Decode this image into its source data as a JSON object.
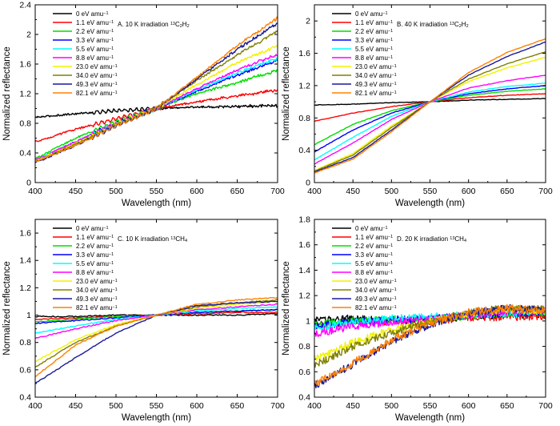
{
  "colors": [
    "#000000",
    "#ff0000",
    "#00dd00",
    "#0000ff",
    "#00ffff",
    "#ff00ff",
    "#f2f200",
    "#808000",
    "#1a1a99",
    "#ff8000"
  ],
  "series_names": [
    "0 eV amu⁻¹",
    "1.1 eV amu⁻¹",
    "2.2 eV amu⁻¹",
    "3.3 eV amu⁻¹",
    "5.5 eV amu⁻¹",
    "8.8 eV amu⁻¹",
    "23.0 eV amu⁻¹",
    "34.0 eV amu⁻¹",
    "49.3 eV amu⁻¹",
    "82.1 eV amu⁻¹"
  ],
  "chart_data": [
    {
      "type": "line",
      "panel": "A",
      "title": "A. 10 K irradiation ¹³C₂H₂",
      "xlabel": "Wavelength (nm)",
      "ylabel": "Normalized reflectance",
      "xlim": [
        400,
        700
      ],
      "ylim": [
        0.0,
        2.4
      ],
      "xticks": [
        400,
        450,
        500,
        550,
        600,
        650,
        700
      ],
      "yticks": [
        0.0,
        0.4,
        0.8,
        1.2,
        1.6,
        2.0,
        2.4
      ],
      "x": [
        400,
        450,
        500,
        550,
        600,
        650,
        700
      ],
      "series": [
        {
          "name": "0 eV amu⁻¹",
          "values": [
            0.88,
            0.93,
            0.97,
            1.0,
            1.02,
            1.03,
            1.04
          ]
        },
        {
          "name": "1.1 eV amu⁻¹",
          "values": [
            0.55,
            0.72,
            0.86,
            1.0,
            1.09,
            1.17,
            1.25
          ]
        },
        {
          "name": "2.2 eV amu⁻¹",
          "values": [
            0.32,
            0.6,
            0.82,
            1.0,
            1.2,
            1.35,
            1.52
          ]
        },
        {
          "name": "3.3 eV amu⁻¹",
          "values": [
            0.3,
            0.55,
            0.8,
            1.0,
            1.23,
            1.45,
            1.65
          ]
        },
        {
          "name": "5.5 eV amu⁻¹",
          "values": [
            0.3,
            0.55,
            0.8,
            1.0,
            1.25,
            1.48,
            1.68
          ]
        },
        {
          "name": "8.8 eV amu⁻¹",
          "values": [
            0.3,
            0.55,
            0.8,
            1.0,
            1.27,
            1.52,
            1.73
          ]
        },
        {
          "name": "23.0 eV amu⁻¹",
          "values": [
            0.29,
            0.53,
            0.79,
            1.0,
            1.32,
            1.62,
            1.85
          ]
        },
        {
          "name": "34.0 eV amu⁻¹",
          "values": [
            0.28,
            0.52,
            0.78,
            1.0,
            1.38,
            1.72,
            2.05
          ]
        },
        {
          "name": "49.3 eV amu⁻¹",
          "values": [
            0.27,
            0.5,
            0.77,
            1.0,
            1.4,
            1.8,
            2.15
          ]
        },
        {
          "name": "82.1 eV amu⁻¹",
          "values": [
            0.28,
            0.5,
            0.77,
            1.0,
            1.42,
            1.85,
            2.22
          ]
        }
      ]
    },
    {
      "type": "line",
      "panel": "B",
      "title": "B. 40 K irradiation ¹³C₂H₂",
      "xlabel": "Wavelength (nm)",
      "ylabel": "Normalized reflectance",
      "xlim": [
        400,
        700
      ],
      "ylim": [
        0.0,
        2.2
      ],
      "xticks": [
        400,
        450,
        500,
        550,
        600,
        650,
        700
      ],
      "yticks": [
        0.0,
        0.4,
        0.8,
        1.2,
        1.6,
        2.0
      ],
      "x": [
        400,
        450,
        500,
        550,
        600,
        650,
        700
      ],
      "series": [
        {
          "name": "0 eV amu⁻¹",
          "values": [
            0.96,
            0.97,
            0.99,
            1.0,
            1.02,
            1.03,
            1.04
          ]
        },
        {
          "name": "1.1 eV amu⁻¹",
          "values": [
            0.76,
            0.86,
            0.94,
            1.0,
            1.05,
            1.08,
            1.1
          ]
        },
        {
          "name": "2.2 eV amu⁻¹",
          "values": [
            0.47,
            0.72,
            0.89,
            1.0,
            1.08,
            1.13,
            1.16
          ]
        },
        {
          "name": "3.3 eV amu⁻¹",
          "values": [
            0.38,
            0.65,
            0.86,
            1.0,
            1.1,
            1.16,
            1.2
          ]
        },
        {
          "name": "5.5 eV amu⁻¹",
          "values": [
            0.28,
            0.56,
            0.82,
            1.0,
            1.12,
            1.19,
            1.23
          ]
        },
        {
          "name": "8.8 eV amu⁻¹",
          "values": [
            0.23,
            0.49,
            0.78,
            1.0,
            1.17,
            1.26,
            1.33
          ]
        },
        {
          "name": "23.0 eV amu⁻¹",
          "values": [
            0.15,
            0.36,
            0.7,
            1.0,
            1.25,
            1.42,
            1.55
          ]
        },
        {
          "name": "34.0 eV amu⁻¹",
          "values": [
            0.14,
            0.34,
            0.68,
            1.0,
            1.28,
            1.47,
            1.62
          ]
        },
        {
          "name": "49.3 eV amu⁻¹",
          "values": [
            0.13,
            0.31,
            0.65,
            1.0,
            1.33,
            1.56,
            1.74
          ]
        },
        {
          "name": "82.1 eV amu⁻¹",
          "values": [
            0.12,
            0.29,
            0.63,
            1.0,
            1.36,
            1.61,
            1.78
          ]
        }
      ]
    },
    {
      "type": "line",
      "panel": "C",
      "title": "C. 10 K irradiation ¹³CH₄",
      "xlabel": "Wavelength (nm)",
      "ylabel": "Normalized reflectance",
      "xlim": [
        400,
        700
      ],
      "ylim": [
        0.4,
        1.7
      ],
      "xticks": [
        400,
        450,
        500,
        550,
        600,
        650,
        700
      ],
      "yticks": [
        0.4,
        0.6,
        0.8,
        1.0,
        1.2,
        1.4,
        1.6
      ],
      "x": [
        400,
        450,
        500,
        550,
        600,
        650,
        700
      ],
      "series": [
        {
          "name": "0 eV amu⁻¹",
          "values": [
            0.99,
            0.99,
            1.0,
            1.0,
            1.0,
            1.0,
            1.01
          ]
        },
        {
          "name": "1.1 eV amu⁻¹",
          "values": [
            0.97,
            0.98,
            0.99,
            1.0,
            1.01,
            1.02,
            1.02
          ]
        },
        {
          "name": "2.2 eV amu⁻¹",
          "values": [
            0.95,
            0.97,
            0.99,
            1.0,
            1.02,
            1.03,
            1.04
          ]
        },
        {
          "name": "3.3 eV amu⁻¹",
          "values": [
            0.94,
            0.96,
            0.98,
            1.0,
            1.02,
            1.03,
            1.04
          ]
        },
        {
          "name": "5.5 eV amu⁻¹",
          "values": [
            0.87,
            0.92,
            0.97,
            1.0,
            1.03,
            1.05,
            1.06
          ]
        },
        {
          "name": "8.8 eV amu⁻¹",
          "values": [
            0.83,
            0.9,
            0.96,
            1.0,
            1.04,
            1.06,
            1.08
          ]
        },
        {
          "name": "23.0 eV amu⁻¹",
          "values": [
            0.66,
            0.82,
            0.93,
            1.0,
            1.05,
            1.08,
            1.1
          ]
        },
        {
          "name": "34.0 eV amu⁻¹",
          "values": [
            0.62,
            0.8,
            0.92,
            1.0,
            1.06,
            1.09,
            1.11
          ]
        },
        {
          "name": "49.3 eV amu⁻¹",
          "values": [
            0.5,
            0.69,
            0.87,
            1.0,
            1.07,
            1.09,
            1.1
          ]
        },
        {
          "name": "82.1 eV amu⁻¹",
          "values": [
            0.55,
            0.78,
            0.92,
            1.0,
            1.08,
            1.11,
            1.13
          ]
        }
      ]
    },
    {
      "type": "line",
      "panel": "D",
      "title": "D. 20 K irradiation ¹³CH₄",
      "xlabel": "Wavelength (nm)",
      "ylabel": "Normalized reflectance",
      "xlim": [
        400,
        700
      ],
      "ylim": [
        0.4,
        1.8
      ],
      "xticks": [
        400,
        450,
        500,
        550,
        600,
        650,
        700
      ],
      "yticks": [
        0.4,
        0.6,
        0.8,
        1.0,
        1.2,
        1.4,
        1.6,
        1.8
      ],
      "x": [
        400,
        450,
        500,
        550,
        600,
        650,
        700
      ],
      "series": [
        {
          "name": "0 eV amu⁻¹",
          "values": [
            1.0,
            1.02,
            1.01,
            1.0,
            1.04,
            1.05,
            1.05
          ]
        },
        {
          "name": "1.1 eV amu⁻¹",
          "values": [
            0.97,
            0.99,
            1.0,
            1.0,
            1.03,
            1.03,
            1.04
          ]
        },
        {
          "name": "2.2 eV amu⁻¹",
          "values": [
            0.98,
            1.0,
            1.01,
            1.01,
            1.04,
            1.06,
            1.05
          ]
        },
        {
          "name": "3.3 eV amu⁻¹",
          "values": [
            0.96,
            0.99,
            1.01,
            1.02,
            1.05,
            1.06,
            1.07
          ]
        },
        {
          "name": "5.5 eV amu⁻¹",
          "values": [
            0.95,
            0.99,
            1.02,
            1.03,
            1.05,
            1.06,
            1.07
          ]
        },
        {
          "name": "8.8 eV amu⁻¹",
          "values": [
            0.9,
            0.96,
            0.99,
            1.01,
            1.05,
            1.07,
            1.08
          ]
        },
        {
          "name": "23.0 eV amu⁻¹",
          "values": [
            0.7,
            0.83,
            0.93,
            1.0,
            1.06,
            1.09,
            1.08
          ]
        },
        {
          "name": "34.0 eV amu⁻¹",
          "values": [
            0.65,
            0.8,
            0.91,
            0.99,
            1.07,
            1.1,
            1.09
          ]
        },
        {
          "name": "49.3 eV amu⁻¹",
          "values": [
            0.49,
            0.66,
            0.84,
            0.97,
            1.06,
            1.1,
            1.09
          ]
        },
        {
          "name": "82.1 eV amu⁻¹",
          "values": [
            0.5,
            0.67,
            0.85,
            0.98,
            1.07,
            1.1,
            1.08
          ]
        }
      ]
    }
  ]
}
